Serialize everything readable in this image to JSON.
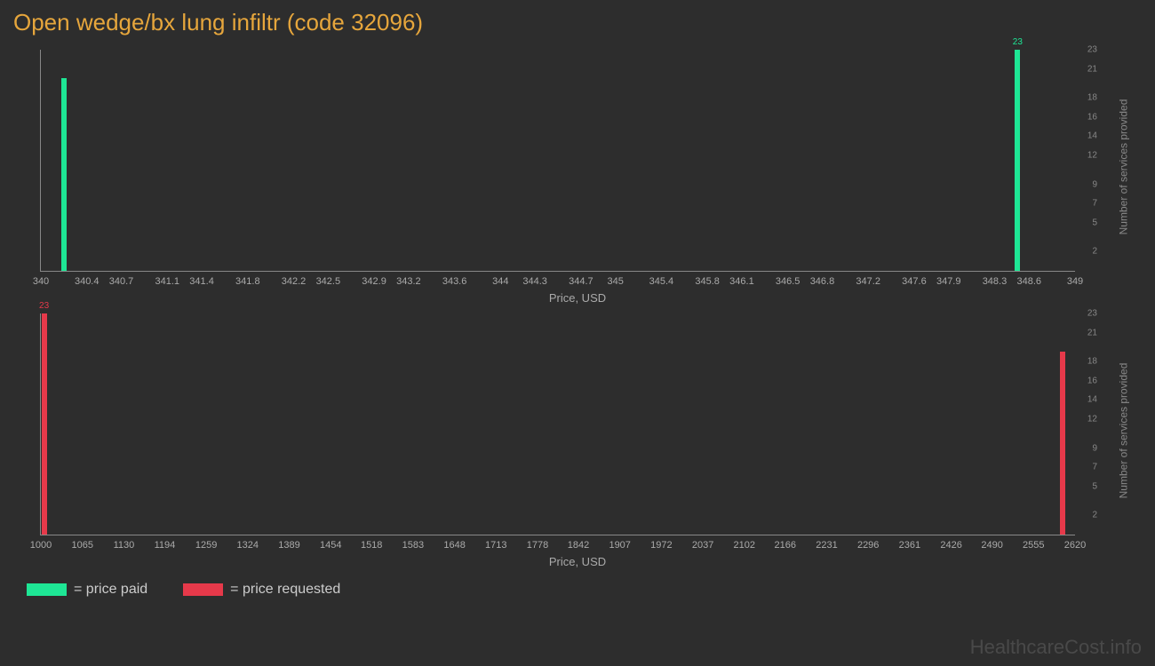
{
  "title": "Open wedge/bx lung infiltr (code 32096)",
  "colors": {
    "background": "#2d2d2d",
    "title": "#e6a63c",
    "paid": "#1ee695",
    "requested": "#e6394a",
    "axis": "#888888",
    "text": "#aaaaaa"
  },
  "chart_top": {
    "type": "bar",
    "series_color": "#1ee695",
    "xlabel": "Price, USD",
    "ylabel": "Number of services provided",
    "xlim": [
      340,
      349
    ],
    "ylim": [
      0,
      23
    ],
    "xticks": [
      "340",
      "340.4",
      "340.7",
      "341.1",
      "341.4",
      "341.8",
      "342.2",
      "342.5",
      "342.9",
      "343.2",
      "343.6",
      "344",
      "344.3",
      "344.7",
      "345",
      "345.4",
      "345.8",
      "346.1",
      "346.5",
      "346.8",
      "347.2",
      "347.6",
      "347.9",
      "348.3",
      "348.6",
      "349"
    ],
    "yticks": [
      "2",
      "5",
      "7",
      "9",
      "12",
      "14",
      "16",
      "18",
      "21",
      "23"
    ],
    "bars": [
      {
        "x": 340.2,
        "y": 20,
        "label": ""
      },
      {
        "x": 348.5,
        "y": 23,
        "label": "23"
      }
    ]
  },
  "chart_bottom": {
    "type": "bar",
    "series_color": "#e6394a",
    "xlabel": "Price, USD",
    "ylabel": "Number of services provided",
    "xlim": [
      1000,
      2620
    ],
    "ylim": [
      0,
      23
    ],
    "xticks": [
      "1000",
      "1065",
      "1130",
      "1194",
      "1259",
      "1324",
      "1389",
      "1454",
      "1518",
      "1583",
      "1648",
      "1713",
      "1778",
      "1842",
      "1907",
      "1972",
      "2037",
      "2102",
      "2166",
      "2231",
      "2296",
      "2361",
      "2426",
      "2490",
      "2555",
      "2620"
    ],
    "yticks": [
      "2",
      "5",
      "7",
      "9",
      "12",
      "14",
      "16",
      "18",
      "21",
      "23"
    ],
    "bars": [
      {
        "x": 1005,
        "y": 23,
        "label": "23"
      },
      {
        "x": 2600,
        "y": 19,
        "label": ""
      }
    ]
  },
  "legend": {
    "paid": "= price paid",
    "requested": "= price requested"
  },
  "watermark": "HealthcareCost.info"
}
